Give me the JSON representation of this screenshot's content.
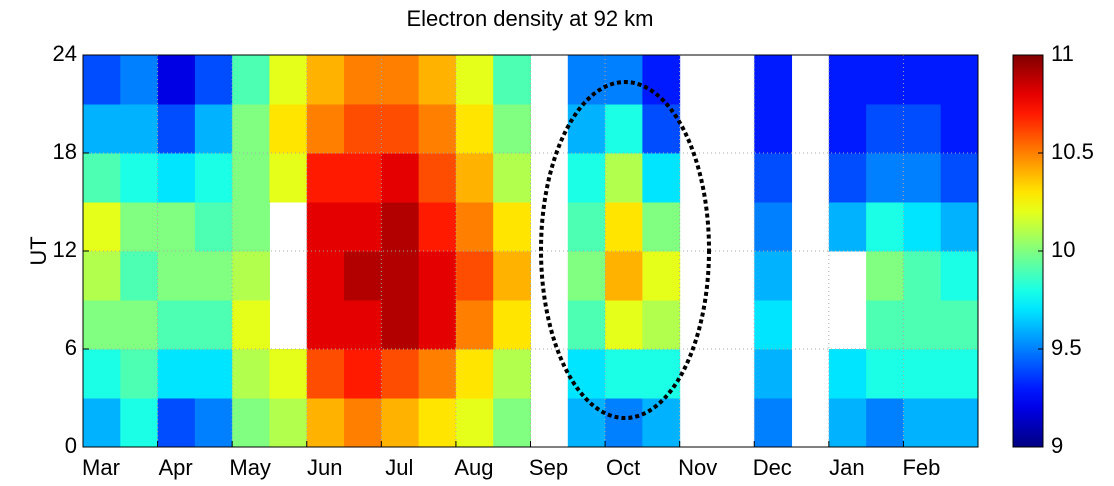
{
  "chart_data": {
    "type": "heatmap",
    "title": "Electron density at 92 km",
    "ylabel": "UT",
    "categories": [
      "Mar",
      "Apr",
      "May",
      "Jun",
      "Jul",
      "Aug",
      "Sep",
      "Oct",
      "Nov",
      "Dec",
      "Jan",
      "Feb"
    ],
    "ylim": [
      0,
      24
    ],
    "yticks": [
      0,
      6,
      12,
      18,
      24
    ],
    "grid": true,
    "colormap": "jet",
    "zlim": [
      9,
      11
    ],
    "zticks": [
      9,
      9.5,
      10,
      10.5,
      11
    ],
    "z": [
      [
        9.6,
        9.8,
        9.4,
        9.5,
        10.0,
        10.1,
        10.4,
        10.5,
        10.4,
        10.3,
        10.2,
        10.0,
        null,
        9.6,
        9.5,
        9.6,
        null,
        null,
        9.5,
        null,
        9.6,
        9.5,
        9.6,
        9.6
      ],
      [
        9.8,
        9.9,
        9.7,
        9.7,
        10.1,
        10.2,
        10.6,
        10.7,
        10.6,
        10.5,
        10.3,
        10.1,
        null,
        9.7,
        9.8,
        9.8,
        null,
        null,
        9.6,
        null,
        9.7,
        9.8,
        9.8,
        9.8
      ],
      [
        10.0,
        10.0,
        9.9,
        9.9,
        10.2,
        null,
        10.8,
        10.8,
        10.9,
        10.8,
        10.5,
        10.3,
        null,
        9.9,
        10.2,
        10.1,
        null,
        null,
        9.7,
        null,
        null,
        9.9,
        9.9,
        9.9
      ],
      [
        10.1,
        9.9,
        10.0,
        10.0,
        10.1,
        null,
        10.8,
        10.9,
        10.9,
        10.8,
        10.6,
        10.4,
        null,
        10.0,
        10.4,
        10.2,
        null,
        null,
        9.6,
        null,
        null,
        10.0,
        9.9,
        9.8
      ],
      [
        10.2,
        10.0,
        10.0,
        9.9,
        10.0,
        null,
        10.8,
        10.8,
        10.9,
        10.7,
        10.5,
        10.3,
        null,
        9.9,
        10.3,
        10.0,
        null,
        null,
        9.5,
        null,
        9.6,
        9.8,
        9.7,
        9.6
      ],
      [
        9.9,
        9.8,
        9.7,
        9.8,
        10.0,
        10.2,
        10.7,
        10.7,
        10.8,
        10.6,
        10.4,
        10.1,
        null,
        9.8,
        10.1,
        9.7,
        null,
        null,
        9.4,
        null,
        9.4,
        9.5,
        9.5,
        9.4
      ],
      [
        9.6,
        9.6,
        9.4,
        9.6,
        10.0,
        10.3,
        10.5,
        10.6,
        10.6,
        10.5,
        10.3,
        10.0,
        null,
        9.6,
        9.8,
        9.4,
        null,
        null,
        9.3,
        null,
        9.3,
        9.4,
        9.4,
        9.3
      ],
      [
        9.4,
        9.5,
        9.2,
        9.4,
        9.9,
        10.2,
        10.4,
        10.5,
        10.5,
        10.4,
        10.2,
        9.9,
        null,
        9.5,
        9.5,
        9.3,
        null,
        null,
        9.3,
        null,
        9.3,
        9.3,
        9.3,
        9.3
      ]
    ]
  }
}
